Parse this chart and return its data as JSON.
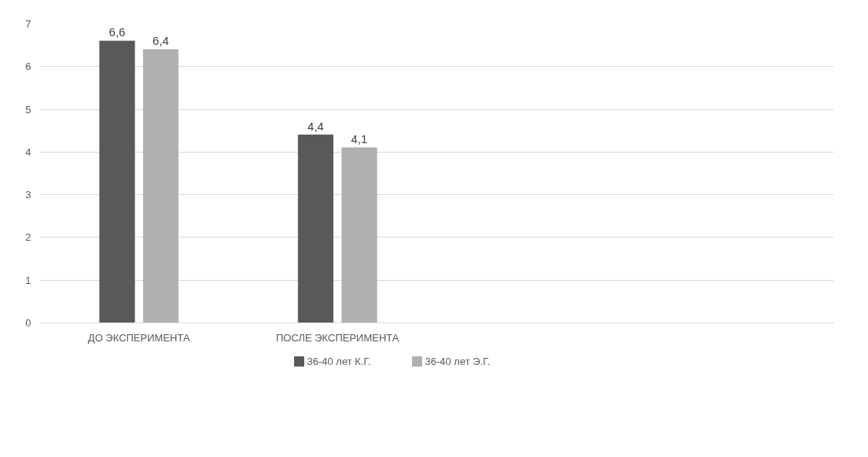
{
  "chart_data": {
    "type": "bar",
    "categories": [
      "ДО ЭКСПЕРИМЕНТА",
      "ПОСЛЕ ЭКСПЕРИМЕНТА",
      null,
      null
    ],
    "series": [
      {
        "name": "36-40 лет К.Г.",
        "color": "#595959",
        "values": [
          6.6,
          4.4,
          null,
          null
        ],
        "value_labels": [
          "6,6",
          "4,4",
          null,
          null
        ]
      },
      {
        "name": "36-40 лет Э.Г.",
        "color": "#b0b0b0",
        "values": [
          6.4,
          4.1,
          null,
          null
        ],
        "value_labels": [
          "6,4",
          "4,1",
          null,
          null
        ]
      }
    ],
    "ylim": [
      0,
      7
    ],
    "yticks": [
      0,
      1,
      2,
      3,
      4,
      5,
      6,
      7
    ],
    "grid": "y",
    "legend": "bottom"
  }
}
